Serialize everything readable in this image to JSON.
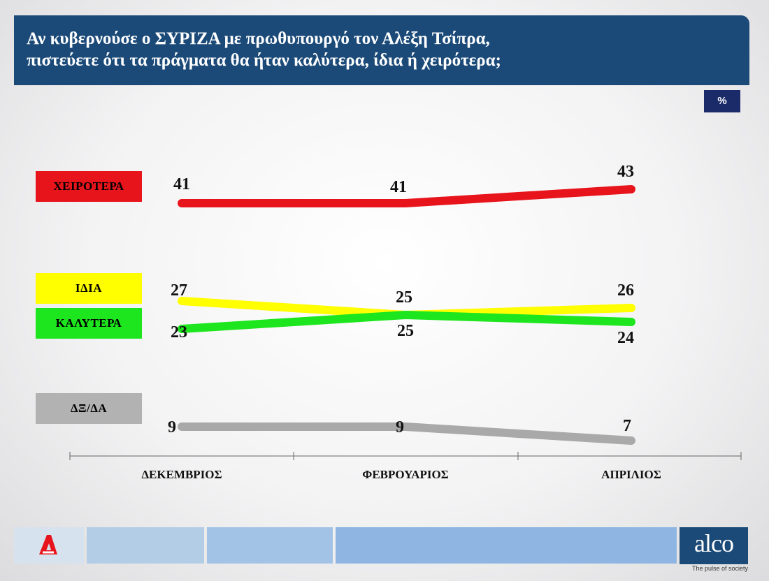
{
  "header": {
    "title_line1": "Αν κυβερνούσε ο ΣΥΡΙΖΑ με πρωθυπουργό τον Αλέξη Τσίπρα,",
    "title_line2": "πιστεύετε ότι τα πράγματα θα ήταν καλύτερα, ίδια ή χειρότερα;"
  },
  "unit_label": "%",
  "legend": [
    {
      "label": "ΧΕΙΡΟΤΕΡΑ",
      "color": "#e8141b",
      "text_color": "#1a1a1a"
    },
    {
      "label": "ΙΔΙΑ",
      "color": "#ffff00",
      "text_color": "#1a1a1a"
    },
    {
      "label": "ΚΑΛΥΤΕΡΑ",
      "color": "#1ee61e",
      "text_color": "#1a1a1a"
    },
    {
      "label": "ΔΞ/ΔΑ",
      "color": "#b2b2b2",
      "text_color": "#1a1a1a"
    }
  ],
  "chart_data": {
    "type": "line",
    "categories": [
      "ΔΕΚΕΜΒΡΙΟΣ",
      "ΦΕΒΡΟΥΑΡΙΟΣ",
      "ΑΠΡΙΛΙΟΣ"
    ],
    "series": [
      {
        "name": "ΧΕΙΡΟΤΕΡΑ",
        "values": [
          41,
          41,
          43
        ],
        "color": "#e8141b"
      },
      {
        "name": "ΙΔΙΑ",
        "values": [
          27,
          25,
          26
        ],
        "color": "#ffff00"
      },
      {
        "name": "ΚΑΛΥΤΕΡΑ",
        "values": [
          23,
          25,
          24
        ],
        "color": "#1ee61e"
      },
      {
        "name": "ΔΞ/ΔΑ",
        "values": [
          9,
          9,
          7
        ],
        "color": "#a9a9a9"
      }
    ],
    "ylabel": "%",
    "grid": false,
    "legend_position": "left"
  },
  "footer": {
    "brand": "alco",
    "tagline": "The pulse of society",
    "logo_icon": "alpha-news-icon",
    "logo_color": "#e8141b",
    "brand_color": "#1b4a78"
  }
}
